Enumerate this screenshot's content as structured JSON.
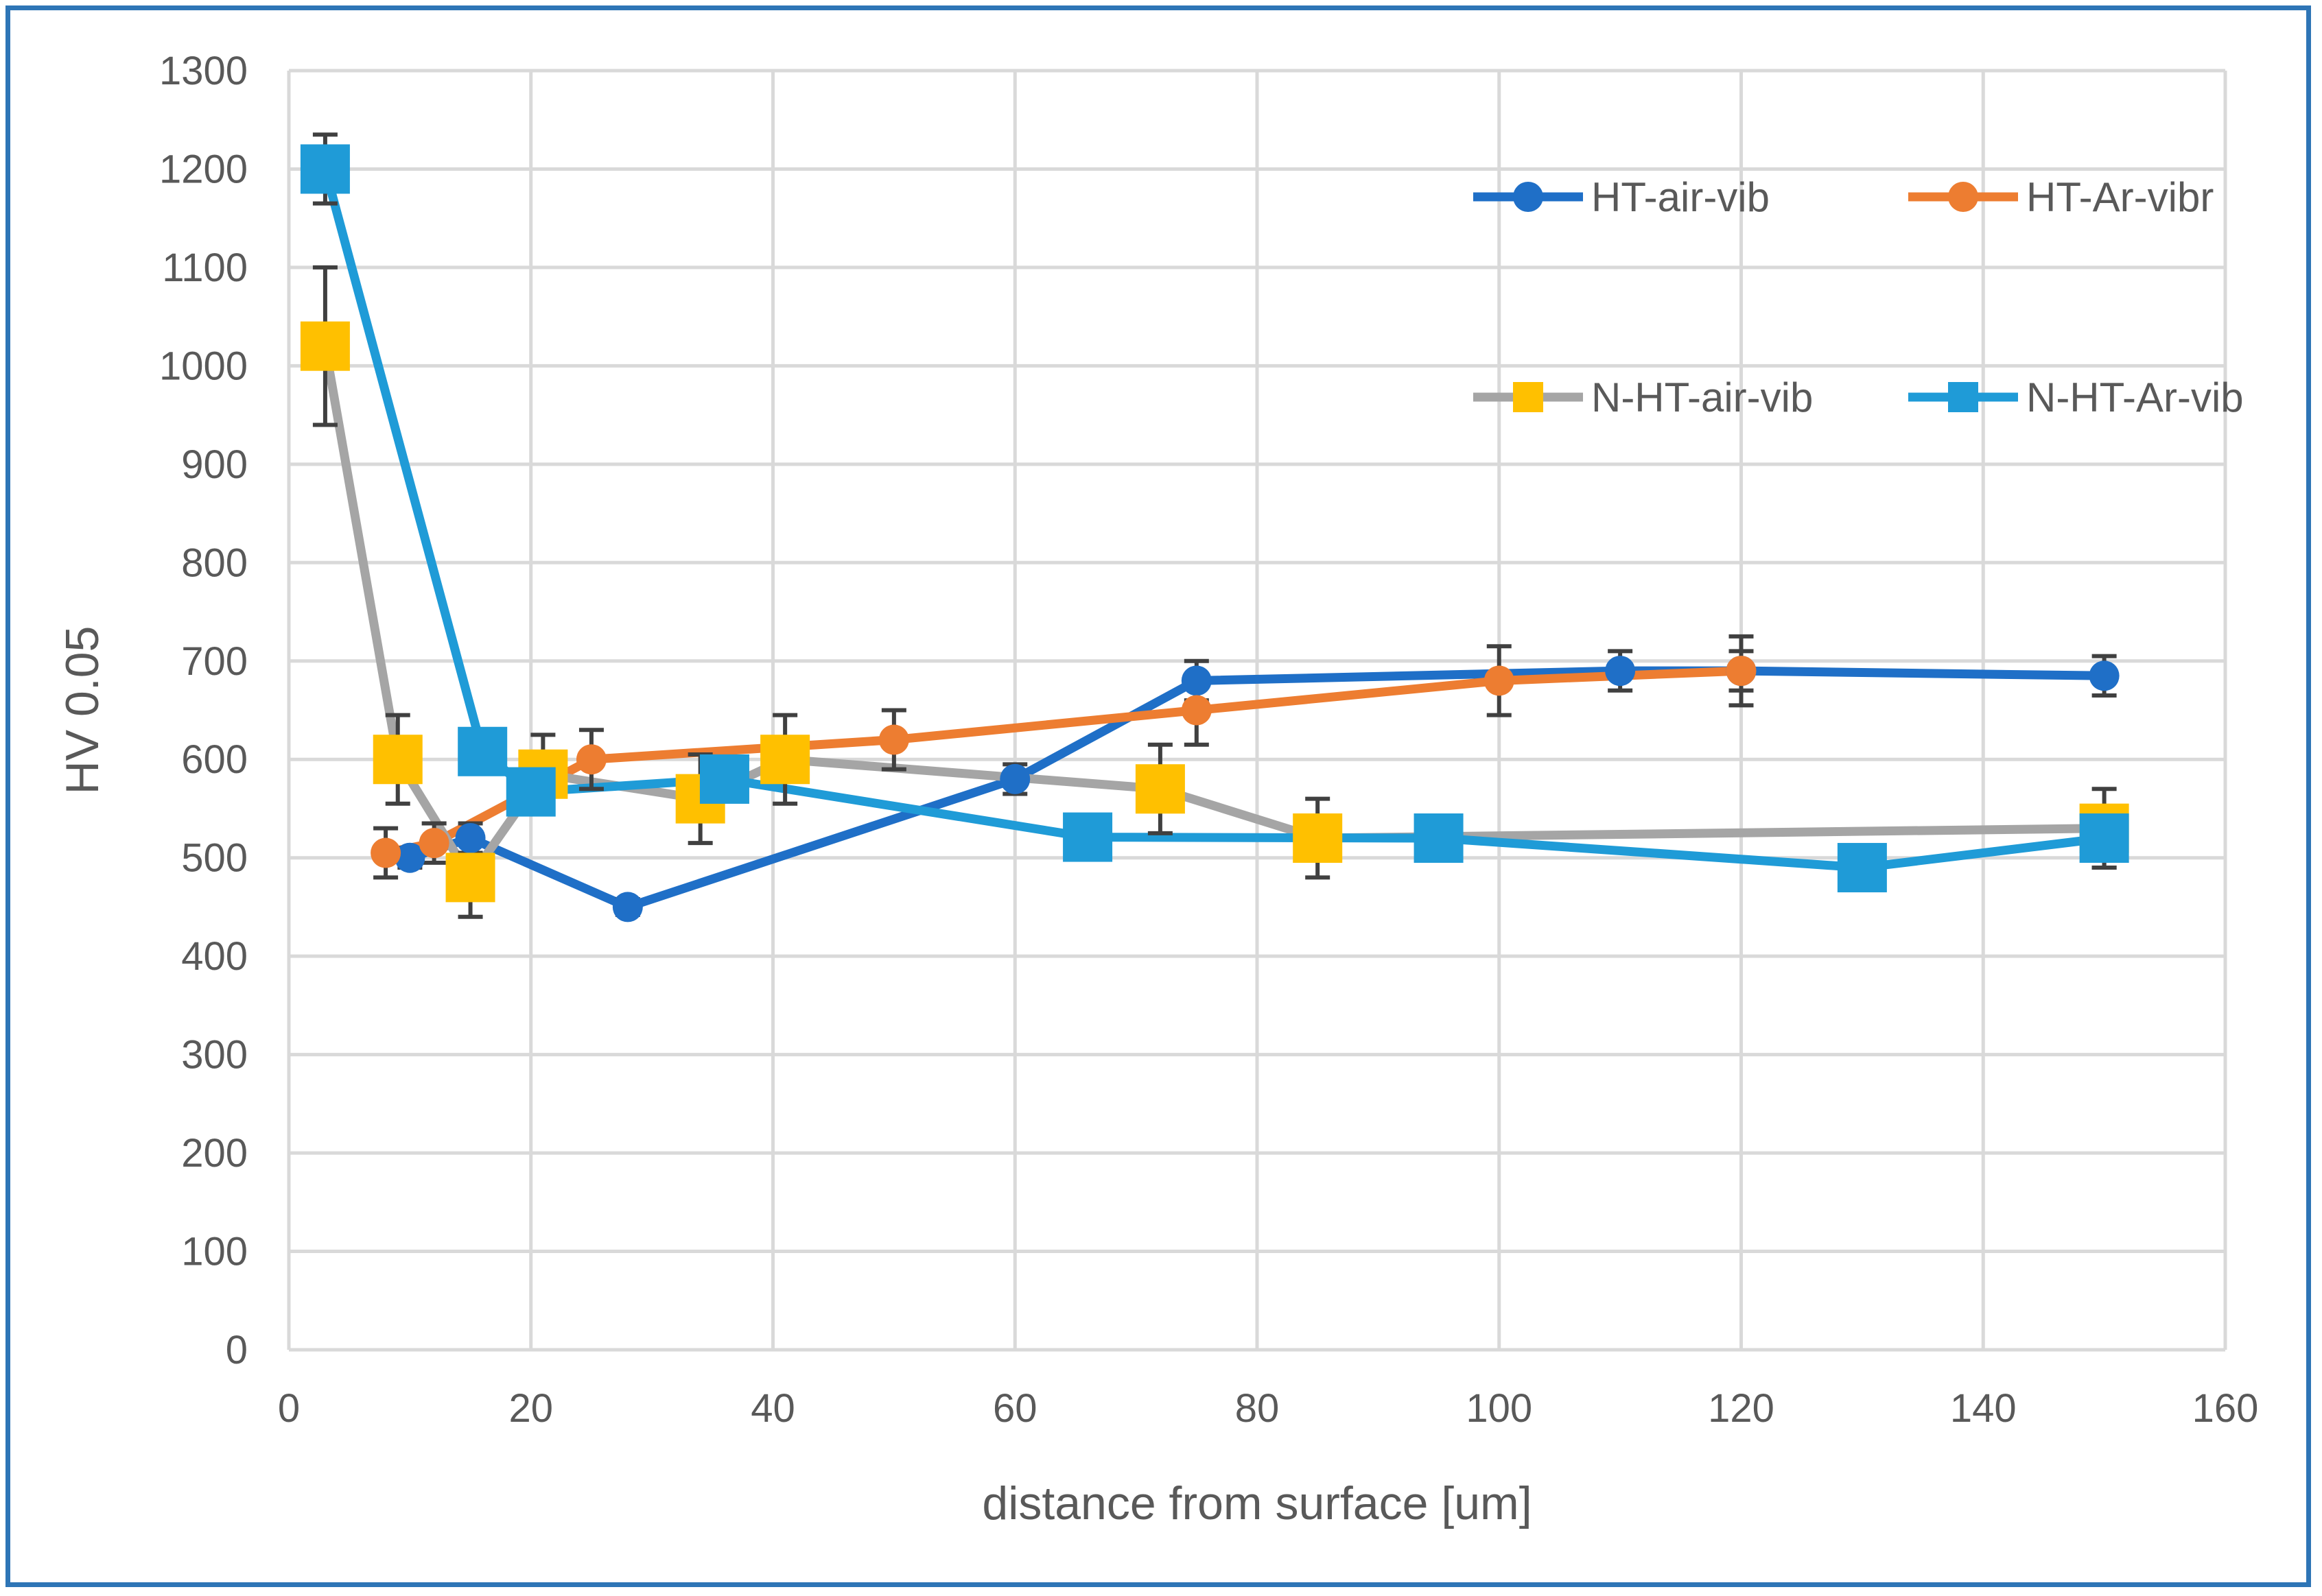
{
  "chart_data": {
    "type": "line",
    "title": "",
    "xlabel": "distance from surface [um]",
    "ylabel": "HV 0.05",
    "xlim": [
      0,
      160
    ],
    "ylim": [
      0,
      1300
    ],
    "xticks": [
      0,
      20,
      40,
      60,
      80,
      100,
      120,
      140,
      160
    ],
    "yticks": [
      0,
      100,
      200,
      300,
      400,
      500,
      600,
      700,
      800,
      900,
      1000,
      1100,
      1200,
      1300
    ],
    "grid": true,
    "legend_position": "top-right",
    "series": [
      {
        "name": "HT-air-vib",
        "color": "#1f6fc7",
        "marker": "circle",
        "x": [
          10,
          15,
          28,
          60,
          75,
          110,
          120,
          150
        ],
        "y": [
          500,
          520,
          450,
          580,
          680,
          690,
          690,
          685
        ],
        "err": [
          10,
          15,
          8,
          15,
          20,
          20,
          20,
          20
        ]
      },
      {
        "name": "HT-Ar-vibr",
        "color": "#ed7d31",
        "marker": "circle",
        "x": [
          8,
          12,
          25,
          50,
          75,
          100,
          120
        ],
        "y": [
          505,
          515,
          600,
          620,
          650,
          680,
          690
        ],
        "err": [
          25,
          20,
          30,
          30,
          35,
          35,
          35
        ]
      },
      {
        "name": "N-HT-air-vib",
        "color": "#a5a5a5",
        "marker_color": "#ffc000",
        "marker": "square",
        "x": [
          3,
          9,
          15,
          21,
          34,
          41,
          72,
          85,
          150
        ],
        "y": [
          1020,
          600,
          480,
          585,
          560,
          600,
          570,
          520,
          530
        ],
        "err": [
          80,
          45,
          40,
          40,
          45,
          45,
          45,
          40,
          40
        ]
      },
      {
        "name": "N-HT-Ar-vib",
        "color": "#1f9bd7",
        "marker": "square",
        "x": [
          3,
          16,
          20,
          36,
          66,
          95,
          130,
          150
        ],
        "y": [
          1200,
          608,
          567,
          580,
          521,
          520,
          490,
          520
        ],
        "err": [
          35,
          0,
          0,
          0,
          0,
          0,
          0,
          30
        ]
      }
    ]
  }
}
